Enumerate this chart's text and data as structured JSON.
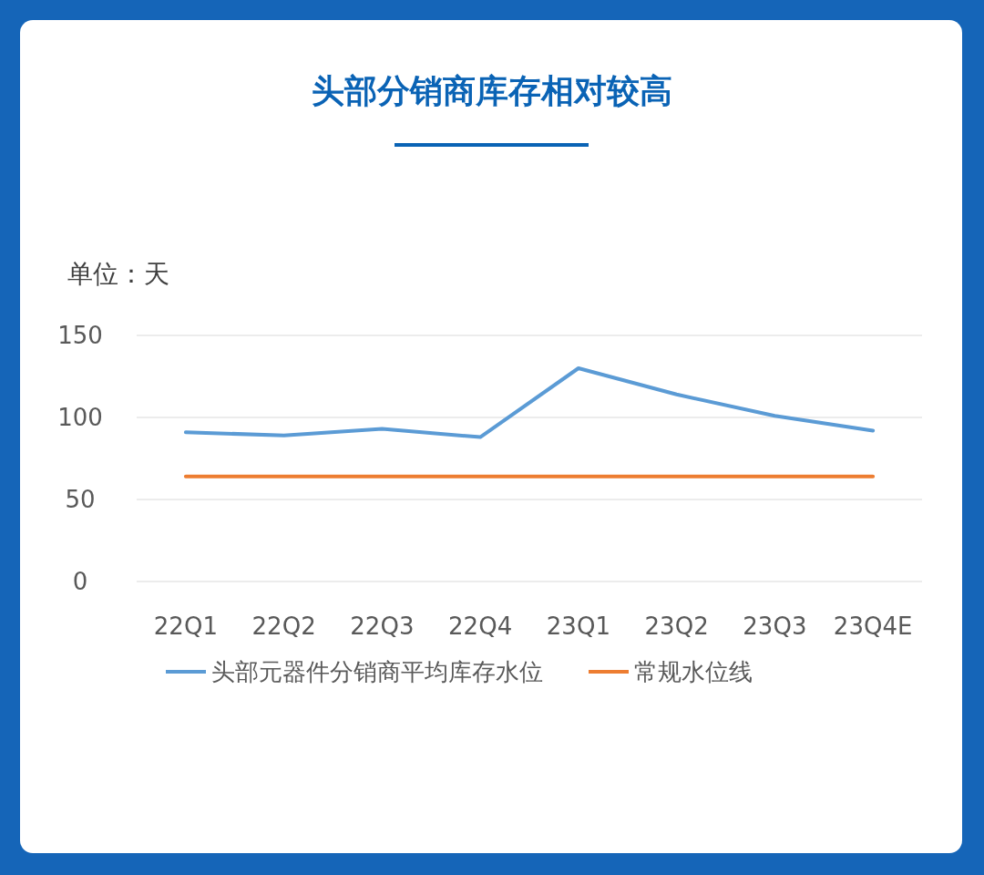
{
  "chart_data": {
    "type": "line",
    "title": "头部分销商库存相对较高",
    "ylabel": "单位：天",
    "categories": [
      "22Q1",
      "22Q2",
      "22Q3",
      "22Q4",
      "23Q1",
      "23Q2",
      "23Q3",
      "23Q4E"
    ],
    "series": [
      {
        "name": "头部元器件分销商平均库存水位",
        "color": "#5b9bd5",
        "values": [
          91,
          89,
          93,
          88,
          130,
          114,
          101,
          92
        ]
      },
      {
        "name": "常规水位线",
        "color": "#ed7d31",
        "values": [
          64,
          64,
          64,
          64,
          64,
          64,
          64,
          64
        ]
      }
    ],
    "ylim": [
      0,
      150
    ],
    "yticks": [
      0,
      50,
      100,
      150
    ],
    "grid": "y",
    "legend": "bottom",
    "marker": "none",
    "line_style": "solid"
  }
}
